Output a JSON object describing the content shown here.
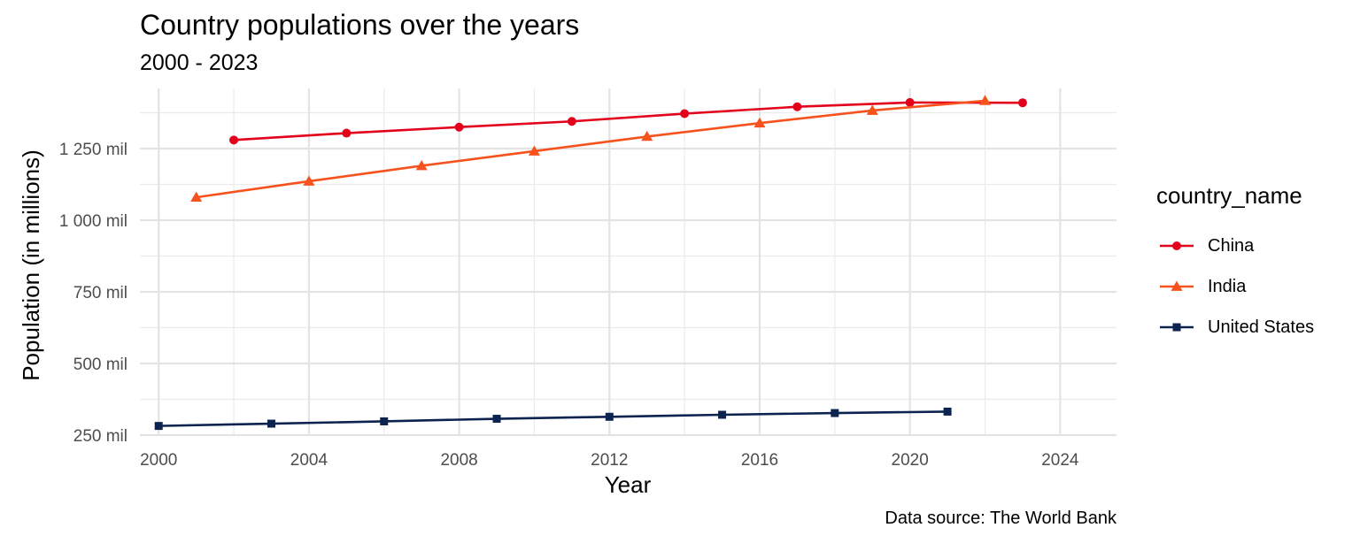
{
  "chart_data": {
    "type": "line",
    "title": "Country populations over the years",
    "subtitle": "2000 - 2023",
    "xlabel": "Year",
    "ylabel": "Population (in millions)",
    "caption": "Data source: The World Bank",
    "xlim": [
      1999.5,
      2025.5
    ],
    "ylim": [
      250,
      1460
    ],
    "x_ticks": [
      2000,
      2004,
      2008,
      2012,
      2016,
      2020,
      2024
    ],
    "y_ticks": [
      250,
      500,
      750,
      1000,
      1250
    ],
    "y_tick_labels": [
      "250 mil",
      "500 mil",
      "750 mil",
      "1 000 mil",
      "1 250 mil"
    ],
    "grid": true,
    "legend": {
      "title": "country_name",
      "placement": "right"
    },
    "series": [
      {
        "name": "China",
        "color": "#e3001b",
        "marker": "circle",
        "x": [
          2002,
          2005,
          2008,
          2011,
          2014,
          2017,
          2020,
          2023
        ],
        "y": [
          1280,
          1304,
          1325,
          1345,
          1372,
          1396,
          1411,
          1410
        ]
      },
      {
        "name": "India",
        "color": "#f7521d",
        "marker": "triangle",
        "x": [
          2001,
          2004,
          2007,
          2010,
          2013,
          2016,
          2019,
          2022
        ],
        "y": [
          1080,
          1136,
          1190,
          1241,
          1292,
          1339,
          1383,
          1417
        ]
      },
      {
        "name": "United States",
        "color": "#0c2350",
        "marker": "square",
        "x": [
          2000,
          2003,
          2006,
          2009,
          2012,
          2015,
          2018,
          2021
        ],
        "y": [
          282,
          290,
          298,
          307,
          314,
          321,
          327,
          332
        ]
      }
    ]
  }
}
